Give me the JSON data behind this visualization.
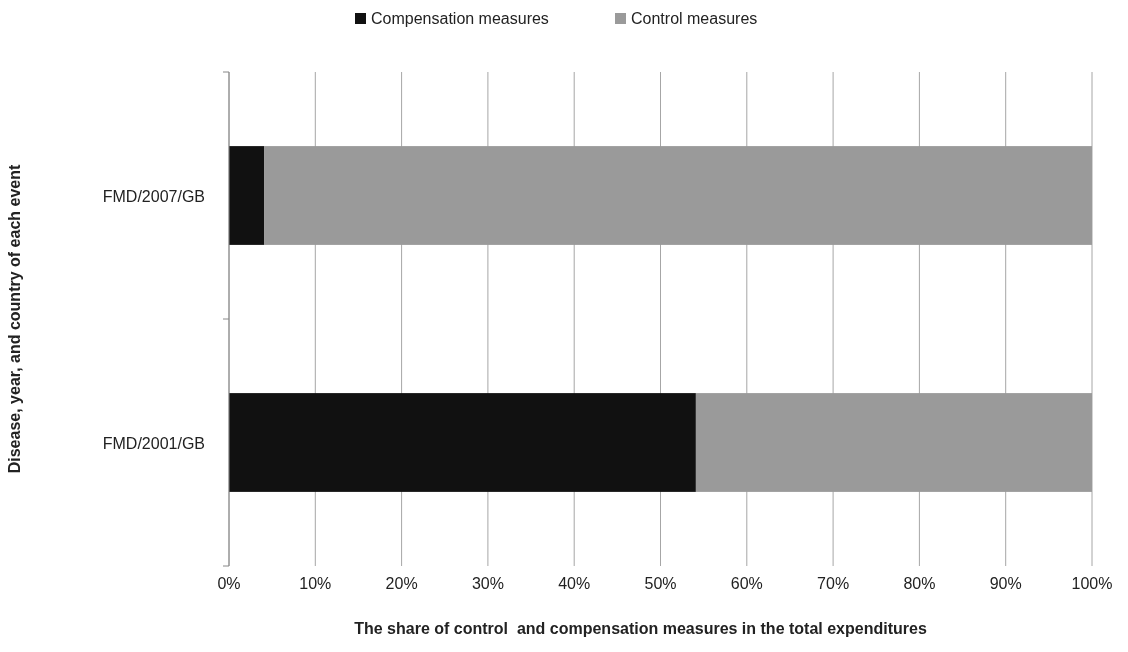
{
  "chart_data": {
    "type": "bar",
    "orientation": "horizontal",
    "stacked": true,
    "categories": [
      "FMD/2007/GB",
      "FMD/2001/GB"
    ],
    "series": [
      {
        "name": "Compensation measures",
        "color": "#111111",
        "values": [
          4.1,
          54.1
        ]
      },
      {
        "name": "Control measures",
        "color": "#9a9a9a",
        "values": [
          95.9,
          45.9
        ]
      }
    ],
    "xlim": [
      0,
      100
    ],
    "xticks": [
      {
        "value": 0,
        "label": "0%"
      },
      {
        "value": 10,
        "label": "10%"
      },
      {
        "value": 20,
        "label": "20%"
      },
      {
        "value": 30,
        "label": "30%"
      },
      {
        "value": 40,
        "label": "40%"
      },
      {
        "value": 50,
        "label": "50%"
      },
      {
        "value": 60,
        "label": "60%"
      },
      {
        "value": 70,
        "label": "70%"
      },
      {
        "value": 80,
        "label": "80%"
      },
      {
        "value": 90,
        "label": "90%"
      },
      {
        "value": 100,
        "label": "100%"
      }
    ],
    "xlabel": "The share of control  and compensation measures in the total expenditures",
    "ylabel": "Disease, year, and country of each event",
    "grid": "x",
    "legend": "top"
  }
}
